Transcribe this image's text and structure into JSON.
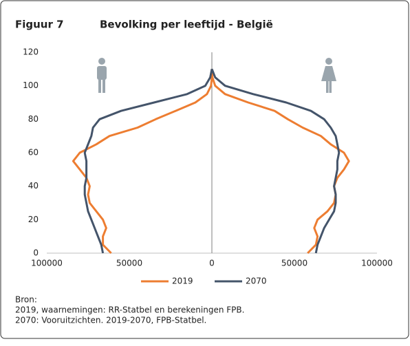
{
  "figure_label": "Figuur 7",
  "chart_data": {
    "type": "pyramid",
    "title": "Bevolking per leeftijd - België",
    "ages": [
      0,
      5,
      10,
      15,
      20,
      25,
      30,
      35,
      40,
      45,
      50,
      55,
      60,
      65,
      70,
      75,
      80,
      85,
      90,
      95,
      100,
      105,
      110
    ],
    "series": [
      {
        "name": "2019",
        "color": "#ed7d31",
        "male": [
          -61000,
          -66000,
          -66000,
          -64000,
          -66000,
          -70000,
          -74000,
          -75000,
          -74000,
          -76000,
          -80000,
          -84000,
          -80000,
          -70000,
          -62000,
          -45000,
          -34000,
          -22000,
          -10000,
          -3000,
          -500,
          0,
          0
        ],
        "female": [
          58000,
          63000,
          64000,
          62000,
          64000,
          70000,
          74000,
          75000,
          74000,
          76000,
          80000,
          83000,
          80000,
          72000,
          66000,
          55000,
          46000,
          38000,
          22000,
          8000,
          2000,
          300,
          0
        ]
      },
      {
        "name": "2070",
        "color": "#44546a",
        "male": [
          -66000,
          -67000,
          -69000,
          -71000,
          -73000,
          -75000,
          -76000,
          -77000,
          -77000,
          -76000,
          -76000,
          -76000,
          -77000,
          -75000,
          -73000,
          -72000,
          -68000,
          -55000,
          -35000,
          -15000,
          -4000,
          -1000,
          0
        ],
        "female": [
          63000,
          64000,
          66000,
          68000,
          71000,
          74000,
          75000,
          75000,
          74000,
          75000,
          76000,
          76000,
          77000,
          76000,
          75000,
          72000,
          68000,
          60000,
          45000,
          25000,
          8000,
          2000,
          0
        ]
      }
    ],
    "xlim": [
      -100000,
      100000
    ],
    "xticks": [
      {
        "value": -100000,
        "label": "100000"
      },
      {
        "value": -50000,
        "label": "50000"
      },
      0,
      50000,
      100000
    ],
    "ylim": [
      0,
      120
    ],
    "yticks": [
      0,
      20,
      40,
      60,
      80,
      100,
      120
    ]
  },
  "source": [
    "Bron:",
    "2019, waarnemingen: RR-Statbel en berekeningen FPB.",
    "2070: Vooruitzichten. 2019-2070, FPB-Statbel."
  ]
}
